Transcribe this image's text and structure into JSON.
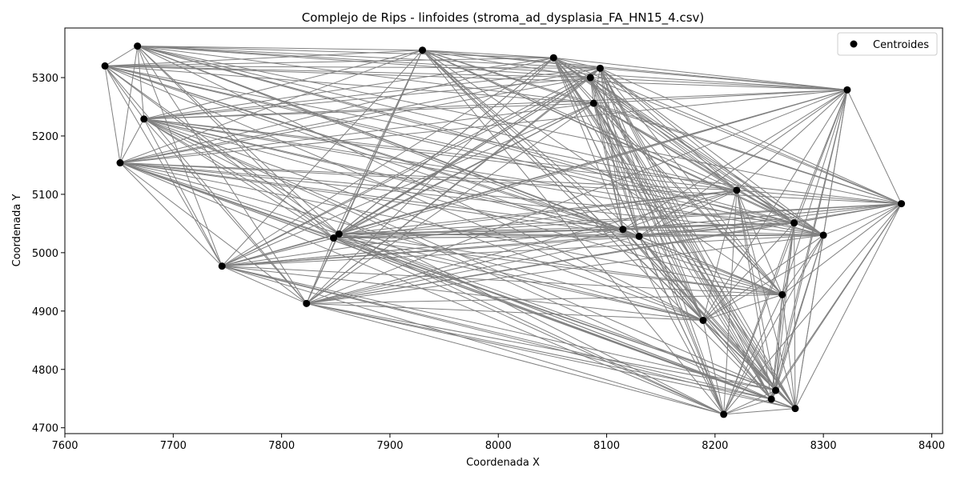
{
  "chart_data": {
    "type": "scatter",
    "title": "Complejo de Rips - linfoides (stroma_ad_dysplasia_FA_HN15_4.csv)",
    "xlabel": "Coordenada X",
    "ylabel": "Coordenada Y",
    "xlim": [
      7600,
      8410
    ],
    "ylim": [
      4690,
      5385
    ],
    "xticks": [
      7600,
      7700,
      7800,
      7900,
      8000,
      8100,
      8200,
      8300,
      8400
    ],
    "yticks": [
      4700,
      4800,
      4900,
      5000,
      5100,
      5200,
      5300
    ],
    "grid": false,
    "legend": {
      "position": "top-right",
      "label": "Centroides"
    },
    "edge_color": "#808080",
    "point_color": "#000000",
    "points": [
      {
        "x": 7637,
        "y": 5320
      },
      {
        "x": 7667,
        "y": 5354
      },
      {
        "x": 7673,
        "y": 5229
      },
      {
        "x": 7651,
        "y": 5154
      },
      {
        "x": 7745,
        "y": 4977
      },
      {
        "x": 7823,
        "y": 4913
      },
      {
        "x": 7848,
        "y": 5025
      },
      {
        "x": 7853,
        "y": 5032
      },
      {
        "x": 7930,
        "y": 5347
      },
      {
        "x": 8051,
        "y": 5334
      },
      {
        "x": 8085,
        "y": 5300
      },
      {
        "x": 8094,
        "y": 5316
      },
      {
        "x": 8088,
        "y": 5256
      },
      {
        "x": 8115,
        "y": 5040
      },
      {
        "x": 8130,
        "y": 5028
      },
      {
        "x": 8189,
        "y": 4884
      },
      {
        "x": 8208,
        "y": 4723
      },
      {
        "x": 8220,
        "y": 5107
      },
      {
        "x": 8252,
        "y": 4749
      },
      {
        "x": 8256,
        "y": 4764
      },
      {
        "x": 8262,
        "y": 4928
      },
      {
        "x": 8274,
        "y": 4733
      },
      {
        "x": 8273,
        "y": 5051
      },
      {
        "x": 8300,
        "y": 5030
      },
      {
        "x": 8322,
        "y": 5279
      },
      {
        "x": 8372,
        "y": 5084
      }
    ]
  }
}
